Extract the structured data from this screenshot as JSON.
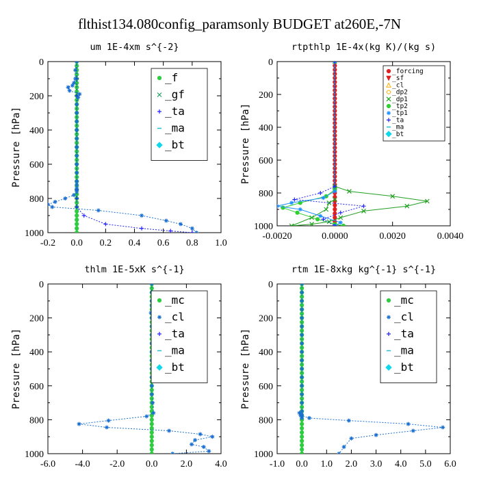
{
  "suptitle": "flthist134.080config_paramsonly  BUDGET at260E,-7N",
  "colors": {
    "f": "#2ecc40",
    "gf": "#20a060",
    "ta": "#2020ff",
    "ma": "#20c0d0",
    "bt": "#10d8e8",
    "mc": "#2ecc40",
    "cl": "#1a6fd0",
    "forcing": "#e02020",
    "sf": "#e02020",
    "dp2": "#ffb000",
    "dp1": "#20a020",
    "tp2": "#30d030",
    "tp1": "#2090ff"
  },
  "chart_data": [
    {
      "type": "line",
      "title": "um   1E-4xm s^{-2}",
      "ylabel": "Pressure [hPa]",
      "xlim": [
        -0.2,
        1.0
      ],
      "ylim": [
        1000,
        0
      ],
      "xticks": [
        "-0.2",
        "0.0",
        "0.2",
        "0.4",
        "0.6",
        "0.8",
        "1.0"
      ],
      "yticks": [
        "0",
        "200",
        "400",
        "600",
        "800",
        "1000"
      ],
      "legend": {
        "position": "top-right",
        "style": "large"
      },
      "series": [
        {
          "name": "_f",
          "color": "#2ecc40",
          "marker": "circle",
          "lineWidth": 3,
          "x": [
            0,
            0,
            0,
            0,
            0,
            0,
            0,
            0,
            0,
            0,
            0,
            0,
            0,
            0,
            0,
            0,
            0,
            0,
            0,
            0,
            0,
            0,
            0,
            0,
            0,
            0,
            0,
            0,
            0,
            0,
            0,
            0,
            0,
            0,
            0,
            0,
            0,
            0,
            0,
            0,
            0
          ],
          "y": [
            0,
            25,
            50,
            75,
            100,
            125,
            150,
            175,
            200,
            225,
            250,
            275,
            300,
            325,
            350,
            375,
            400,
            425,
            450,
            475,
            500,
            525,
            550,
            575,
            600,
            625,
            650,
            675,
            700,
            725,
            750,
            775,
            800,
            825,
            850,
            875,
            900,
            925,
            950,
            975,
            1000
          ]
        },
        {
          "name": "_gf",
          "color": "#20a060",
          "marker": "x",
          "lineWidth": 1,
          "x": [],
          "y": []
        },
        {
          "name": "_ta",
          "color": "#2020ff",
          "marker": "plus",
          "lineWidth": 1,
          "dashed": true,
          "x": [
            0,
            0,
            0,
            0,
            0,
            0,
            0,
            0,
            0,
            0,
            0,
            0.05,
            0.2,
            0.45,
            0.65,
            0.8
          ],
          "y": [
            0,
            100,
            200,
            300,
            400,
            500,
            600,
            700,
            750,
            800,
            850,
            900,
            950,
            975,
            990,
            1000
          ]
        },
        {
          "name": "_ma",
          "color": "#20c0d0",
          "marker": "dash",
          "lineWidth": 1,
          "x": [],
          "y": []
        },
        {
          "name": "_bt",
          "color": "#10d8e8",
          "marker": "diamond",
          "lineWidth": 1,
          "x": [],
          "y": []
        },
        {
          "name": "",
          "color": "#1a6fd0",
          "marker": "star",
          "lineWidth": 1,
          "dashed": true,
          "legend": false,
          "x": [
            0,
            -0.01,
            -0.01,
            -0.02,
            -0.03,
            -0.06,
            -0.05,
            0.02,
            0.01,
            0,
            0,
            0,
            0,
            0,
            0,
            0,
            0,
            0,
            0,
            0,
            0,
            0,
            -0.02,
            -0.08,
            -0.15,
            -0.2,
            -0.17,
            0.15,
            0.45,
            0.62,
            0.72,
            0.8,
            0.83
          ],
          "y": [
            0,
            50,
            100,
            125,
            140,
            150,
            170,
            190,
            210,
            250,
            300,
            350,
            400,
            450,
            500,
            550,
            600,
            650,
            700,
            720,
            740,
            760,
            780,
            800,
            820,
            835,
            850,
            870,
            900,
            930,
            950,
            975,
            1000
          ]
        }
      ]
    },
    {
      "type": "line",
      "title": "rtpthlp   1E-4x(kg K)/(kg s)",
      "ylabel": "Pressure [hPa]",
      "xlim": [
        -0.002,
        0.004
      ],
      "ylim": [
        1000,
        0
      ],
      "xticks": [
        "-0.0020",
        "0.0000",
        "0.0020",
        "0.0040"
      ],
      "yticks": [
        "0",
        "200",
        "400",
        "600",
        "800",
        "1000"
      ],
      "legend": {
        "position": "top-right",
        "style": "small"
      },
      "series": [
        {
          "name": "_forcing",
          "color": "#e02020",
          "marker": "circle",
          "lineWidth": 3,
          "x": [
            0,
            0,
            0,
            0,
            0,
            0,
            0,
            0,
            0,
            0,
            0,
            0,
            0,
            0,
            0,
            0,
            0,
            0,
            0,
            0,
            0,
            0,
            0,
            0,
            0,
            0,
            0,
            0,
            0,
            0,
            0,
            0,
            0,
            0,
            0,
            0,
            0,
            0,
            0,
            0,
            0
          ],
          "y": [
            0,
            25,
            50,
            75,
            100,
            125,
            150,
            175,
            200,
            225,
            250,
            275,
            300,
            325,
            350,
            375,
            400,
            425,
            450,
            475,
            500,
            525,
            550,
            575,
            600,
            625,
            650,
            675,
            700,
            725,
            750,
            775,
            800,
            825,
            850,
            875,
            900,
            925,
            950,
            975,
            1000
          ]
        },
        {
          "name": "_sf",
          "color": "#e02020",
          "marker": "triangle-down",
          "lineWidth": 1,
          "x": [],
          "y": []
        },
        {
          "name": "_cl",
          "color": "#ffb000",
          "marker": "triangle",
          "lineWidth": 1,
          "x": [],
          "y": []
        },
        {
          "name": "_dp2",
          "color": "#ffb000",
          "marker": "circle-open",
          "lineWidth": 1,
          "x": [],
          "y": []
        },
        {
          "name": "_dp1",
          "color": "#20a020",
          "marker": "x",
          "lineWidth": 1,
          "x": [
            0,
            0,
            0.0005,
            0.002,
            0.0032,
            0.0025,
            0.001,
            0.0002,
            -0.0002,
            -0.0008,
            -0.0015,
            -0.0008,
            -0.0003,
            -0.0002,
            0
          ],
          "y": [
            0,
            760,
            790,
            820,
            850,
            880,
            910,
            950,
            975,
            990,
            1000,
            950,
            900,
            860,
            840
          ]
        },
        {
          "name": "_tp2",
          "color": "#30d030",
          "marker": "circle",
          "lineWidth": 1,
          "x": [
            0,
            0,
            -0.0003,
            -0.0012,
            -0.0018,
            -0.0013,
            -0.0006,
            0,
            0.0003
          ],
          "y": [
            0,
            780,
            820,
            860,
            890,
            920,
            960,
            990,
            1000
          ]
        },
        {
          "name": "_tp1",
          "color": "#2090ff",
          "marker": "star",
          "lineWidth": 1,
          "x": [
            0,
            0,
            -0.0004,
            -0.0015,
            -0.002,
            -0.0012,
            -0.0005,
            0.0002,
            0
          ],
          "y": [
            0,
            790,
            830,
            860,
            880,
            900,
            940,
            980,
            1000
          ]
        },
        {
          "name": "_ta",
          "color": "#2020ff",
          "marker": "plus",
          "lineWidth": 1,
          "dashed": true,
          "x": [
            0,
            0,
            -0.0005,
            -0.0014,
            0.001,
            0.0002,
            -0.0004,
            0
          ],
          "y": [
            0,
            760,
            800,
            840,
            880,
            920,
            960,
            1000
          ]
        },
        {
          "name": "_ma",
          "color": "#20c0d0",
          "marker": "dash",
          "lineWidth": 1,
          "x": [],
          "y": []
        },
        {
          "name": "_bt",
          "color": "#10d8e8",
          "marker": "diamond",
          "lineWidth": 1,
          "x": [],
          "y": []
        }
      ]
    },
    {
      "type": "line",
      "title": "thlm   1E-5xK s^{-1}",
      "ylabel": "Pressure [hPa]",
      "xlim": [
        -6.0,
        4.0
      ],
      "ylim": [
        1000,
        0
      ],
      "xticks": [
        "-6.0",
        "-4.0",
        "-2.0",
        "0.0",
        "2.0",
        "4.0"
      ],
      "yticks": [
        "0",
        "200",
        "400",
        "600",
        "800",
        "1000"
      ],
      "legend": {
        "position": "top-right",
        "style": "large"
      },
      "series": [
        {
          "name": "_mc",
          "color": "#2ecc40",
          "marker": "circle",
          "lineWidth": 3,
          "x": [
            0,
            0,
            0,
            0,
            0,
            0,
            0,
            0,
            0,
            0,
            0,
            0,
            0,
            0,
            0,
            0,
            0,
            0,
            0,
            0,
            0,
            0,
            0,
            0,
            0,
            0,
            0,
            0,
            0,
            0,
            0,
            0,
            0,
            0,
            0,
            0,
            0,
            0,
            0,
            0,
            0
          ],
          "y": [
            0,
            25,
            50,
            75,
            100,
            125,
            150,
            175,
            200,
            225,
            250,
            275,
            300,
            325,
            350,
            375,
            400,
            425,
            450,
            475,
            500,
            525,
            550,
            575,
            600,
            625,
            650,
            675,
            700,
            725,
            750,
            775,
            800,
            825,
            850,
            875,
            900,
            925,
            950,
            975,
            1000
          ]
        },
        {
          "name": "_cl",
          "color": "#1a6fd0",
          "marker": "star",
          "lineWidth": 1,
          "dashed": true,
          "x": [
            0,
            0,
            0,
            0,
            0.05,
            -0.05,
            0,
            0,
            0,
            0,
            0,
            0,
            0,
            0,
            0,
            0,
            0.05,
            0.1,
            -0.3,
            -2.5,
            -4.2,
            -2.6,
            1.0,
            2.8,
            3.5,
            2.5,
            2.3,
            3.0,
            3.3,
            1.2
          ],
          "y": [
            0,
            50,
            100,
            130,
            150,
            170,
            200,
            250,
            300,
            350,
            400,
            450,
            500,
            550,
            600,
            650,
            700,
            760,
            780,
            805,
            825,
            845,
            865,
            885,
            900,
            920,
            945,
            960,
            985,
            1000
          ]
        },
        {
          "name": "_ta",
          "color": "#2020ff",
          "marker": "plus",
          "lineWidth": 1,
          "x": [],
          "y": []
        },
        {
          "name": "_ma",
          "color": "#20c0d0",
          "marker": "dash",
          "lineWidth": 1,
          "x": [],
          "y": []
        },
        {
          "name": "_bt",
          "color": "#10d8e8",
          "marker": "diamond",
          "lineWidth": 1,
          "x": [],
          "y": []
        }
      ]
    },
    {
      "type": "line",
      "title": "rtm   1E-8xkg kg^{-1} s^{-1}",
      "ylabel": "Pressure [hPa]",
      "xlim": [
        -1.0,
        6.0
      ],
      "ylim": [
        1000,
        0
      ],
      "xticks": [
        "-1.0",
        "0.0",
        "1.0",
        "2.0",
        "3.0",
        "4.0",
        "5.0",
        "6.0"
      ],
      "yticks": [
        "0",
        "200",
        "400",
        "600",
        "800",
        "1000"
      ],
      "legend": {
        "position": "top-right",
        "style": "large"
      },
      "series": [
        {
          "name": "_mc",
          "color": "#2ecc40",
          "marker": "circle",
          "lineWidth": 3,
          "x": [
            0,
            0,
            0,
            0,
            0,
            0,
            0,
            0,
            0,
            0,
            0,
            0,
            0,
            0,
            0,
            0,
            0,
            0,
            0,
            0,
            0,
            0,
            0,
            0,
            0,
            0,
            0,
            0,
            0,
            0,
            0,
            0,
            0,
            0,
            0,
            0,
            0,
            0,
            0,
            0,
            0
          ],
          "y": [
            0,
            25,
            50,
            75,
            100,
            125,
            150,
            175,
            200,
            225,
            250,
            275,
            300,
            325,
            350,
            375,
            400,
            425,
            450,
            475,
            500,
            525,
            550,
            575,
            600,
            625,
            650,
            675,
            700,
            725,
            750,
            775,
            800,
            825,
            850,
            875,
            900,
            925,
            950,
            975,
            1000
          ]
        },
        {
          "name": "_cl",
          "color": "#1a6fd0",
          "marker": "star",
          "lineWidth": 1,
          "dashed": true,
          "x": [
            0,
            0,
            0,
            0,
            0,
            0,
            0,
            0,
            0,
            0,
            0,
            0,
            0,
            0,
            0,
            0,
            0,
            0,
            0,
            -0.1,
            -0.05,
            0.3,
            1.9,
            4.3,
            5.7,
            4.5,
            3.0,
            2.0,
            1.7,
            1.5
          ],
          "y": [
            0,
            50,
            100,
            150,
            200,
            250,
            300,
            350,
            400,
            450,
            500,
            550,
            600,
            650,
            700,
            750,
            770,
            780,
            790,
            760,
            775,
            790,
            805,
            825,
            845,
            865,
            890,
            910,
            960,
            1000
          ]
        },
        {
          "name": "_ta",
          "color": "#2020ff",
          "marker": "plus",
          "lineWidth": 1,
          "x": [],
          "y": []
        },
        {
          "name": "_ma",
          "color": "#20c0d0",
          "marker": "dash",
          "lineWidth": 1,
          "x": [],
          "y": []
        },
        {
          "name": "_bt",
          "color": "#10d8e8",
          "marker": "diamond",
          "lineWidth": 1,
          "x": [],
          "y": []
        }
      ]
    }
  ]
}
